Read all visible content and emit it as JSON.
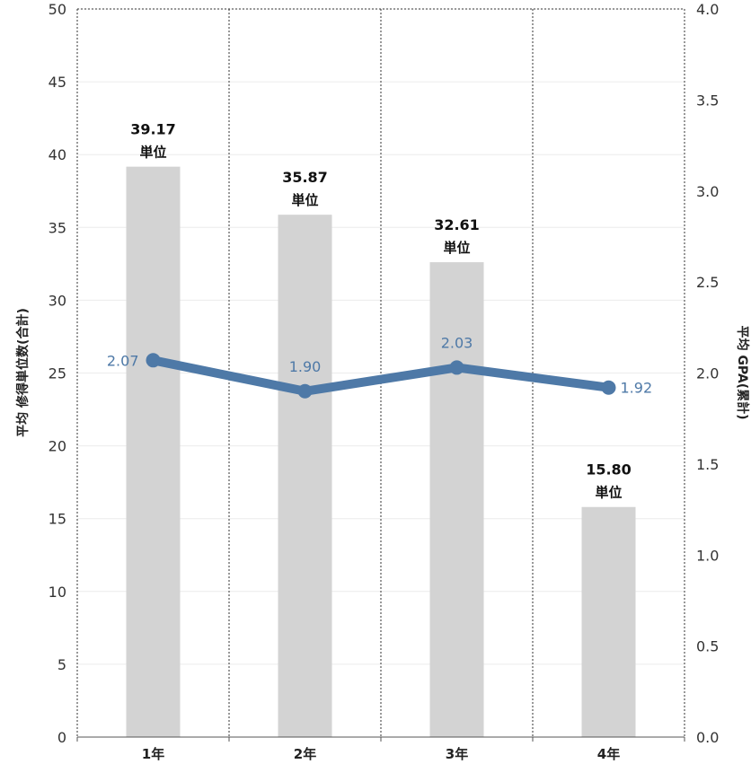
{
  "chart_data": {
    "type": "bar",
    "categories": [
      "1年",
      "2年",
      "3年",
      "4年"
    ],
    "series": [
      {
        "type": "bar",
        "axis": "left",
        "values": [
          39.17,
          35.87,
          32.61,
          15.8
        ],
        "labels": [
          "39.17",
          "35.87",
          "32.61",
          "15.80"
        ],
        "unit_label": "単位",
        "color": "#d3d3d3"
      },
      {
        "type": "line",
        "axis": "right",
        "values": [
          2.07,
          1.9,
          2.03,
          1.92
        ],
        "labels": [
          "2.07",
          "1.90",
          "2.03",
          "1.92"
        ],
        "color": "#4e79a7"
      }
    ],
    "ylabel": "平均 修得単位数(合計)",
    "y2label": "平均 GPA(累計)",
    "ylim": [
      0,
      50
    ],
    "y2lim": [
      0,
      4
    ],
    "yticks": [
      "0",
      "5",
      "10",
      "15",
      "20",
      "25",
      "30",
      "35",
      "40",
      "45",
      "50"
    ],
    "y2ticks": [
      "0.0",
      "0.5",
      "1.0",
      "1.5",
      "2.0",
      "2.5",
      "3.0",
      "3.5",
      "4.0"
    ],
    "grid": true,
    "category_separators": "dotted"
  }
}
